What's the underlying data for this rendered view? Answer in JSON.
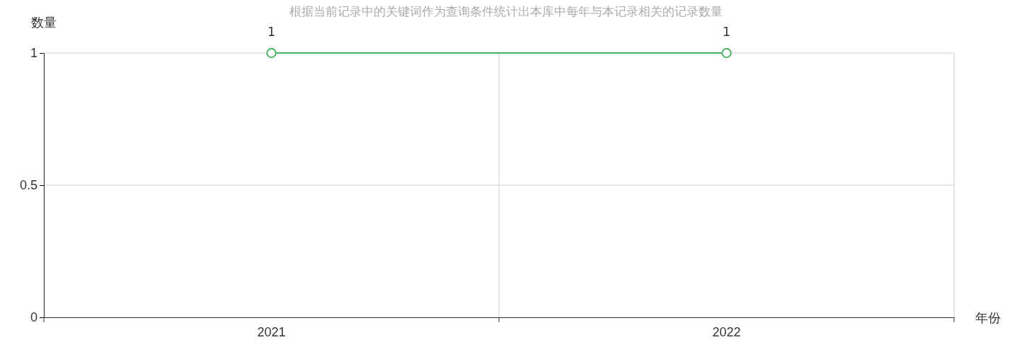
{
  "chart_data": {
    "type": "line",
    "title": "根据当前记录中的关键词作为查询条件统计出本库中每年与本记录相关的记录数量",
    "xlabel": "年份",
    "ylabel": "数量",
    "categories": [
      "2021",
      "2022"
    ],
    "series": [
      {
        "color": "#4cae60",
        "values": [
          1,
          1
        ]
      }
    ],
    "ylim": [
      0,
      1
    ],
    "yticks": [
      0,
      0.5,
      1
    ],
    "grid": true,
    "marker": "circle",
    "data_labels": true
  }
}
